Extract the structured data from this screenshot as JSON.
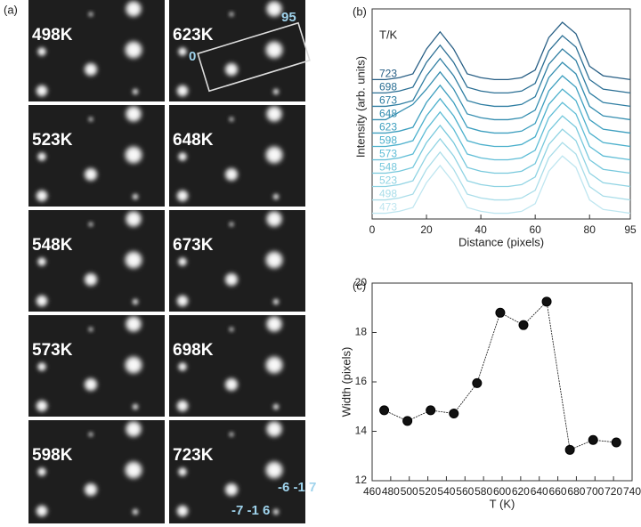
{
  "image_panel": {
    "label": "(a)",
    "tiles": [
      {
        "label": "498K"
      },
      {
        "label": "623K"
      },
      {
        "label": "523K"
      },
      {
        "label": "648K"
      },
      {
        "label": "548K"
      },
      {
        "label": "673K"
      },
      {
        "label": "573K"
      },
      {
        "label": "698K"
      },
      {
        "label": "598K"
      },
      {
        "label": "723K"
      }
    ],
    "annotations": [
      "95",
      "0",
      "-6 -1 7",
      "-7 -1 6"
    ]
  },
  "chart_data": [
    {
      "type": "line",
      "panel_label": "(b)",
      "x_label": "Distance (pixels)",
      "y_label": "Intensity (arb. units)",
      "annotation": "T/K",
      "xlim": [
        0,
        95
      ],
      "xticks": [
        0,
        20,
        40,
        60,
        80,
        95
      ],
      "ylim": [
        0,
        11
      ],
      "x": [
        0,
        5,
        10,
        15,
        20,
        25,
        30,
        35,
        40,
        45,
        50,
        55,
        60,
        65,
        70,
        75,
        80,
        85,
        90,
        95
      ],
      "series": [
        {
          "name": "473",
          "color": "#bfe6f0",
          "values": [
            0.3,
            0.3,
            0.4,
            0.6,
            1.9,
            2.8,
            1.9,
            0.6,
            0.4,
            0.3,
            0.3,
            0.4,
            0.8,
            2.5,
            3.3,
            2.7,
            1,
            0.5,
            0.4,
            0.3
          ]
        },
        {
          "name": "498",
          "color": "#a9dde9",
          "values": [
            1,
            1,
            1.1,
            1.3,
            2.6,
            3.5,
            2.6,
            1.3,
            1.1,
            1,
            1,
            1.1,
            1.5,
            3.2,
            4,
            3.4,
            1.7,
            1.2,
            1.1,
            1
          ]
        },
        {
          "name": "523",
          "color": "#8fd3e3",
          "values": [
            1.7,
            1.7,
            1.8,
            2,
            3.3,
            4.2,
            3.3,
            2,
            1.8,
            1.7,
            1.7,
            1.8,
            2.2,
            3.9,
            4.7,
            4.1,
            2.4,
            1.9,
            1.8,
            1.7
          ]
        },
        {
          "name": "548",
          "color": "#76c8dc",
          "values": [
            2.4,
            2.4,
            2.5,
            2.7,
            4,
            4.9,
            4,
            2.7,
            2.5,
            2.4,
            2.4,
            2.5,
            2.9,
            4.6,
            5.4,
            4.8,
            3.1,
            2.6,
            2.5,
            2.4
          ]
        },
        {
          "name": "573",
          "color": "#5fbdd6",
          "values": [
            3.1,
            3.1,
            3.2,
            3.4,
            4.7,
            5.6,
            4.7,
            3.4,
            3.2,
            3.1,
            3.1,
            3.2,
            3.6,
            5.3,
            6.1,
            5.5,
            3.8,
            3.3,
            3.2,
            3.1
          ]
        },
        {
          "name": "598",
          "color": "#4cb0cc",
          "values": [
            3.8,
            3.8,
            3.9,
            4.1,
            5.4,
            6.3,
            5.4,
            4.1,
            3.9,
            3.8,
            3.8,
            3.9,
            4.3,
            6,
            6.8,
            6.2,
            4.5,
            4,
            3.9,
            3.8
          ]
        },
        {
          "name": "623",
          "color": "#3e9fbf",
          "values": [
            4.5,
            4.5,
            4.6,
            4.8,
            6.1,
            7,
            6.1,
            4.8,
            4.6,
            4.5,
            4.5,
            4.6,
            5,
            6.7,
            7.5,
            6.9,
            5.2,
            4.7,
            4.6,
            4.5
          ]
        },
        {
          "name": "648",
          "color": "#358eb0",
          "values": [
            5.2,
            5.2,
            5.6,
            6,
            6.8,
            7.7,
            6.8,
            5.5,
            5.3,
            5.2,
            5.2,
            5.3,
            5.7,
            7.4,
            8.2,
            7.6,
            5.9,
            5.4,
            5.3,
            5.2
          ]
        },
        {
          "name": "673",
          "color": "#2f7ea2",
          "values": [
            5.9,
            5.9,
            6,
            6.2,
            7.5,
            8.4,
            7.5,
            6.2,
            6,
            5.9,
            5.9,
            6,
            6.4,
            8.1,
            8.9,
            8.3,
            6.6,
            6.1,
            6,
            5.9
          ]
        },
        {
          "name": "698",
          "color": "#2b6f94",
          "values": [
            6.6,
            6.6,
            6.7,
            6.9,
            8.2,
            9.1,
            8.2,
            6.9,
            6.7,
            6.6,
            6.6,
            6.7,
            7.1,
            8.8,
            9.6,
            9,
            7.3,
            6.8,
            6.7,
            6.6
          ]
        },
        {
          "name": "723",
          "color": "#285f85",
          "values": [
            7.3,
            7.3,
            7.4,
            7.6,
            8.9,
            9.8,
            8.9,
            7.6,
            7.4,
            7.3,
            7.3,
            7.4,
            7.8,
            9.5,
            10.3,
            9.7,
            8,
            7.5,
            7.4,
            7.3
          ]
        }
      ]
    },
    {
      "type": "line",
      "panel_label": "(c)",
      "x_label": "T (K)",
      "y_label": "Width (pixels)",
      "markers": true,
      "xlim": [
        460,
        740
      ],
      "xticks": [
        460,
        480,
        500,
        520,
        540,
        560,
        580,
        600,
        620,
        640,
        660,
        680,
        700,
        720,
        740
      ],
      "ylim": [
        12,
        20
      ],
      "yticks": [
        12,
        14,
        16,
        18,
        20
      ],
      "x": [
        473,
        498,
        523,
        548,
        573,
        598,
        623,
        648,
        673,
        698,
        723
      ],
      "series": [
        {
          "color": "#111111",
          "values": [
            14.85,
            14.42,
            14.85,
            14.72,
            15.95,
            18.8,
            18.3,
            19.25,
            13.25,
            13.65,
            13.55
          ]
        }
      ]
    }
  ]
}
